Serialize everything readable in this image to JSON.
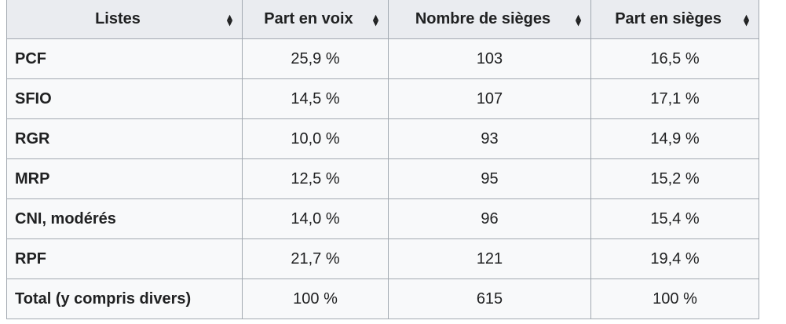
{
  "table": {
    "headers": [
      "Listes",
      "Part en voix",
      "Nombre de sièges",
      "Part en sièges"
    ],
    "sort_icon": "sort-both-icon",
    "rows": [
      [
        "PCF",
        "25,9 %",
        "103",
        "16,5 %"
      ],
      [
        "SFIO",
        "14,5 %",
        "107",
        "17,1 %"
      ],
      [
        "RGR",
        "10,0 %",
        "93",
        "14,9 %"
      ],
      [
        "MRP",
        "12,5 %",
        "95",
        "15,2 %"
      ],
      [
        "CNI, modérés",
        "14,0 %",
        "96",
        "15,4 %"
      ],
      [
        "RPF",
        "21,7 %",
        "121",
        "19,4 %"
      ],
      [
        "Total (y compris divers)",
        "100 %",
        "615",
        "100 %"
      ]
    ]
  },
  "colors": {
    "header_bg": "#eaecf0",
    "cell_bg": "#f8f9fa",
    "border": "#a2a9b1",
    "text": "#202122"
  }
}
